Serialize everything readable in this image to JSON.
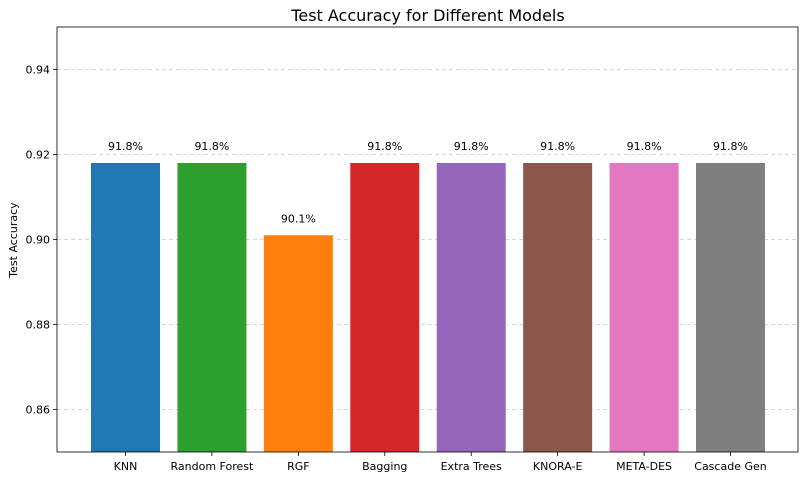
{
  "chart_data": {
    "type": "bar",
    "title": "Test Accuracy for Different Models",
    "xlabel": "",
    "ylabel": "Test Accuracy",
    "categories": [
      "KNN",
      "Random Forest",
      "RGF",
      "Bagging",
      "Extra Trees",
      "KNORA-E",
      "META-DES",
      "Cascade Gen"
    ],
    "values": [
      0.918,
      0.918,
      0.901,
      0.918,
      0.918,
      0.918,
      0.918,
      0.918
    ],
    "data_labels": [
      "91.8%",
      "91.8%",
      "90.1%",
      "91.8%",
      "91.8%",
      "91.8%",
      "91.8%",
      "91.8%"
    ],
    "colors": [
      "#1f77b4",
      "#2ca02c",
      "#ff7f0e",
      "#d62728",
      "#9467bd",
      "#8c564b",
      "#e377c2",
      "#7f7f7f"
    ],
    "ylim": [
      0.85,
      0.95
    ],
    "yticks": [
      0.86,
      0.88,
      0.9,
      0.92,
      0.94
    ],
    "ytick_labels": [
      "0.86",
      "0.88",
      "0.90",
      "0.92",
      "0.94"
    ],
    "grid": "y-dashed",
    "legend": "none"
  }
}
